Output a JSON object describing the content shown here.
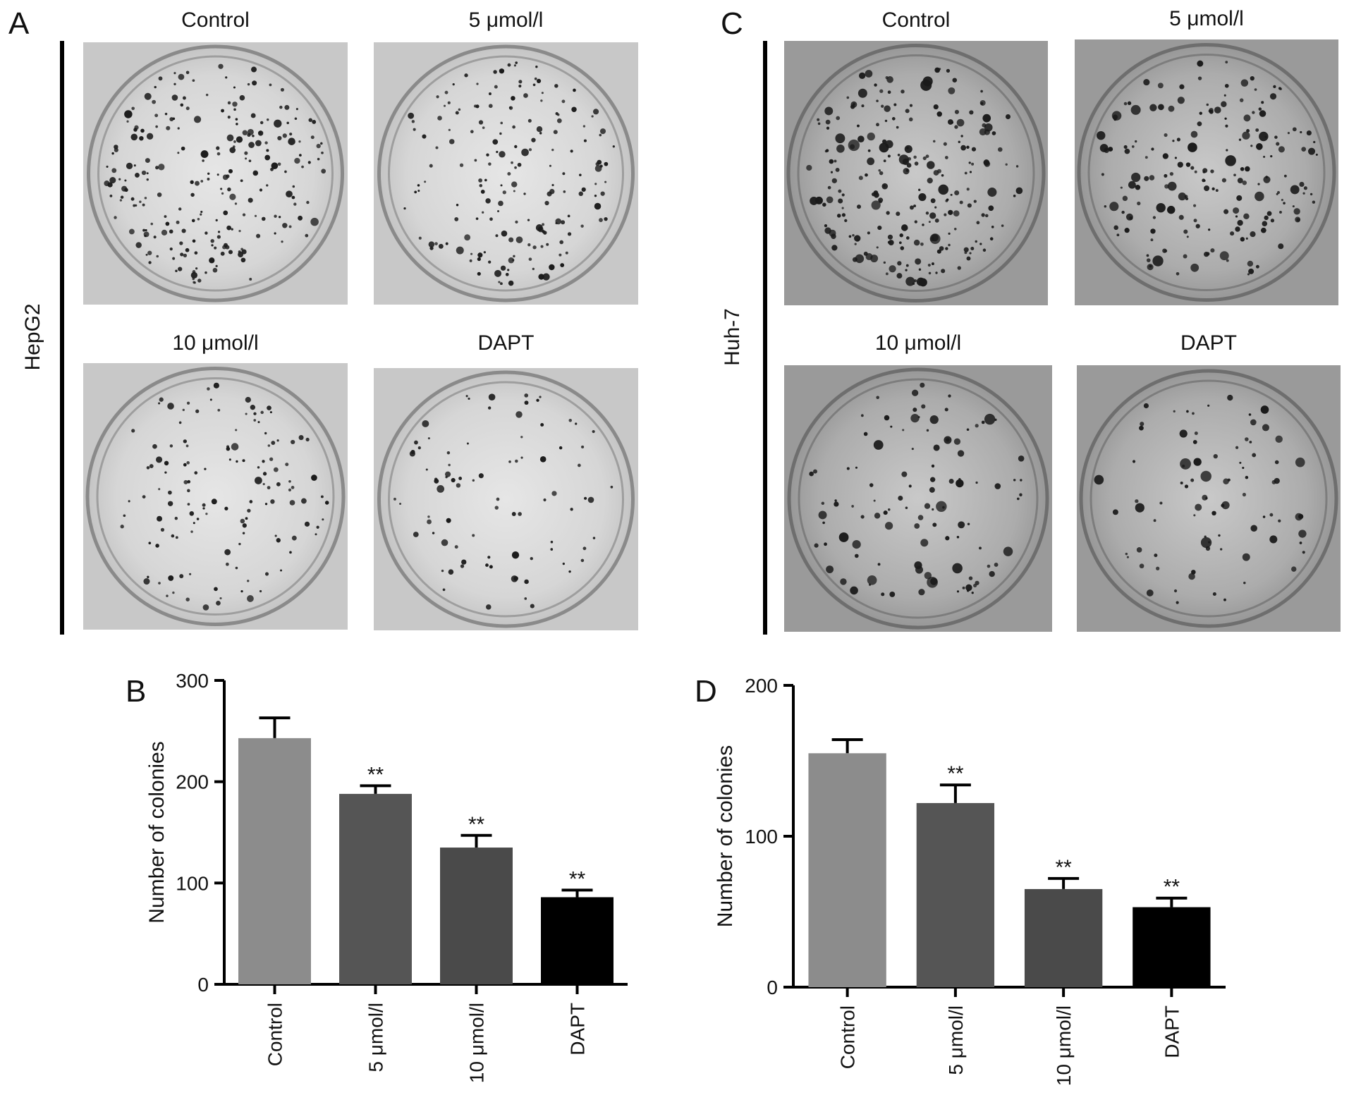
{
  "panels": {
    "A": {
      "letter": "A",
      "cell_line": "HepG2",
      "dishes": [
        {
          "title": "Control",
          "colony_density": 1.0
        },
        {
          "title": "5 μmol/l",
          "colony_density": 0.75
        },
        {
          "title": "10 μmol/l",
          "colony_density": 0.55
        },
        {
          "title": "DAPT",
          "colony_density": 0.35
        }
      ]
    },
    "C": {
      "letter": "C",
      "cell_line": "Huh-7",
      "dishes": [
        {
          "title": "Control",
          "colony_density": 1.0
        },
        {
          "title": "5 μmol/l",
          "colony_density": 0.8
        },
        {
          "title": "10 μmol/l",
          "colony_density": 0.45
        },
        {
          "title": "DAPT",
          "colony_density": 0.35
        }
      ]
    }
  },
  "chart_data": [
    {
      "panel": "B",
      "type": "bar",
      "categories": [
        "Control",
        "5 μmol/l",
        "10 μmol/l",
        "DAPT"
      ],
      "values": [
        243,
        188,
        135,
        86
      ],
      "errors": [
        20,
        8,
        12,
        7
      ],
      "significance": [
        "",
        "**",
        "**",
        "**"
      ],
      "bar_colors": [
        "#8c8c8c",
        "#555555",
        "#4a4a4a",
        "#000000"
      ],
      "xlabel": "",
      "ylabel": "Number of colonies",
      "ylim": [
        0,
        300
      ],
      "yticks": [
        0,
        100,
        200,
        300
      ],
      "grid": false,
      "legend": "none"
    },
    {
      "panel": "D",
      "type": "bar",
      "categories": [
        "Control",
        "5 μmol/l",
        "10 μmol/l",
        "DAPT"
      ],
      "values": [
        155,
        122,
        65,
        53
      ],
      "errors": [
        9,
        12,
        7,
        6
      ],
      "significance": [
        "",
        "**",
        "**",
        "**"
      ],
      "bar_colors": [
        "#8c8c8c",
        "#555555",
        "#4a4a4a",
        "#000000"
      ],
      "xlabel": "",
      "ylabel": "Number of colonies",
      "ylim": [
        0,
        200
      ],
      "yticks": [
        0,
        100,
        200
      ],
      "grid": false,
      "legend": "none"
    }
  ],
  "chart_letters": {
    "B": "B",
    "D": "D"
  }
}
